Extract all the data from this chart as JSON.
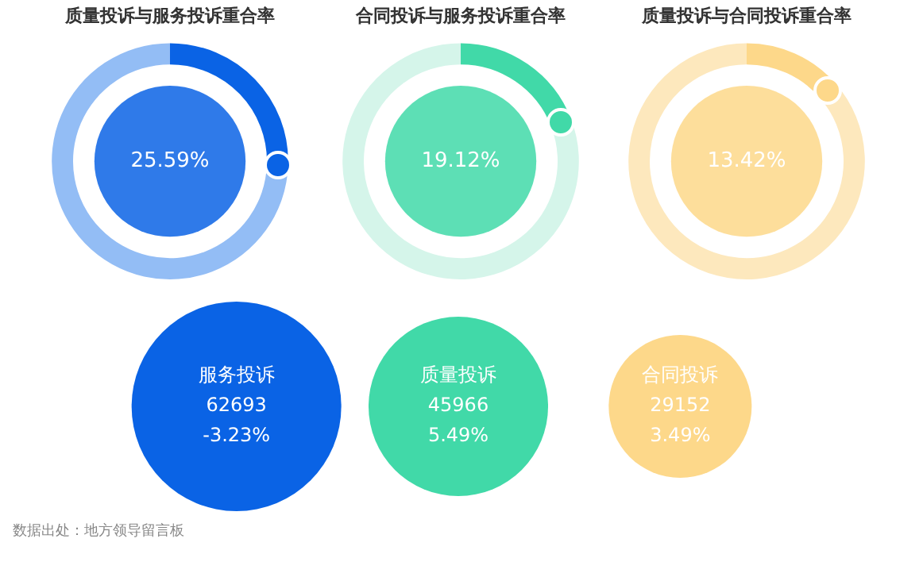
{
  "chart_data": [
    {
      "type": "donut",
      "title": "质量投诉与服务投诉重合率",
      "categories": [
        null,
        null
      ],
      "values": [
        25.59,
        74.41
      ],
      "colors": [
        "#0a63e5",
        "#93bdf5"
      ],
      "value_labels": [
        "25.59%",
        null
      ],
      "legend": false
    },
    {
      "type": "donut",
      "title": "合同投诉与服务投诉重合率",
      "categories": [
        null,
        null
      ],
      "values": [
        19.12,
        80.88
      ],
      "colors": [
        "#41d9a8",
        "#d5f5ea"
      ],
      "value_labels": [
        "19.12%",
        null
      ],
      "legend": false
    },
    {
      "type": "donut",
      "title": "质量投诉与合同投诉重合率",
      "categories": [
        null,
        null
      ],
      "values": [
        13.42,
        86.58
      ],
      "colors": [
        "#fdd88a",
        "#fde8bd"
      ],
      "value_labels": [
        "13.42%",
        null
      ],
      "legend": false
    },
    {
      "type": "other",
      "categories": [
        "服务投诉",
        "质量投诉",
        "合同投诉"
      ],
      "values": [
        62693,
        45966,
        29152
      ],
      "colors": [
        "#0a63e5",
        "#41d9a8",
        "#fdd88a"
      ],
      "data_labels": true,
      "annotations": [
        {
          "text": "-3.23%",
          "x": "服务投诉"
        },
        {
          "text": "5.49%",
          "x": "质量投诉"
        },
        {
          "text": "3.49%",
          "x": "合同投诉"
        },
        "数据出处：地方领导留言板"
      ]
    }
  ]
}
